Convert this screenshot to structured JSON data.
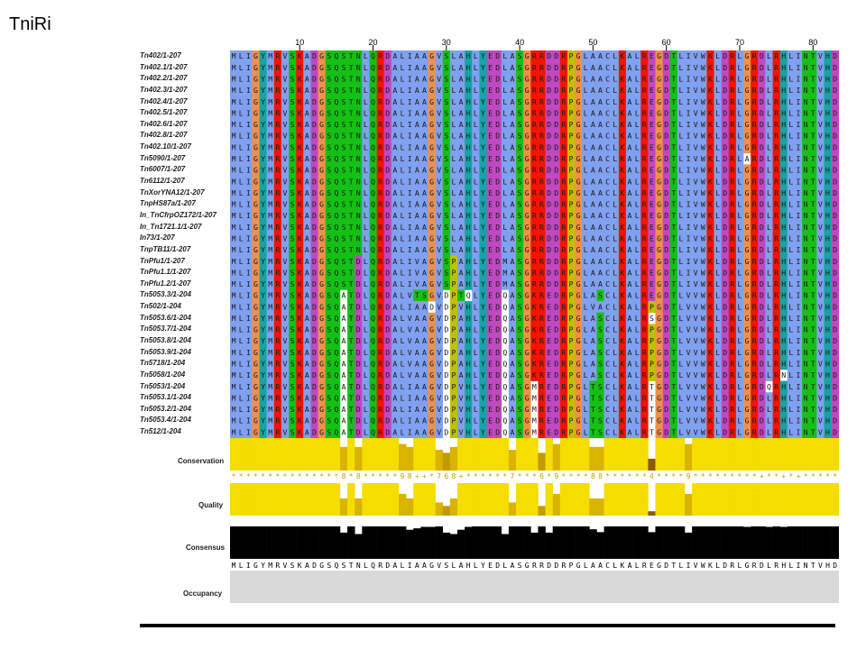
{
  "title": "TniRi",
  "ruler": [
    {
      "col": 10,
      "label": "10"
    },
    {
      "col": 20,
      "label": "20"
    },
    {
      "col": 30,
      "label": "30"
    },
    {
      "col": 40,
      "label": "40"
    },
    {
      "col": 50,
      "label": "50"
    },
    {
      "col": 60,
      "label": "60"
    },
    {
      "col": 70,
      "label": "70"
    },
    {
      "col": 80,
      "label": "80"
    }
  ],
  "sequences": [
    {
      "name": "Tn402/1-207",
      "seq": "MLIGYMRVSKADGSQSTNLQRDALIAAGVSLAHLYEDLASGRRDDRPGLAACLKALREGDTLIVWKLDRLGRDLRHLINTVHD"
    },
    {
      "name": "Tn402.1/1-207",
      "seq": "MLIGYMRVSKADGSQSTNLQRDALIAAGVSLAHLYEDLASGRRDDRPGLAACLKALREGDTLIVWKLDRLGRDLRHLINTVHD"
    },
    {
      "name": "Tn402.2/1-207",
      "seq": "MLIGYMRVSKADGSQSTNLQRDALIAAGVSLAHLYEDLASGRRDDRPGLAACLKALREGDTLIVWKLDRLGRDLRHLINTVHD"
    },
    {
      "name": "Tn402.3/1-207",
      "seq": "MLIGYMRVSKADGSQSTNLQRDALIAAGVSLAHLYEDLASGRRDDRPGLAACLKALREGDTLIVWKLDRLGRDLRHLINTVHD"
    },
    {
      "name": "Tn402.4/1-207",
      "seq": "MLIGYMRVSKADGSQSTNLQRDALIAAGVSLAHLYEDLASGRRDDRPGLAACLKALREGDTLIVWKLDRLGRDLRHLINTVHD"
    },
    {
      "name": "Tn402.5/1-207",
      "seq": "MLIGYMRVSKADGSQSTNLQRDALIAAGVSLAHLYEDLASGRRDDRPGLAACLKALREGDTLIVWKLDRLGRDLRHLINTVHD"
    },
    {
      "name": "Tn402.6/1-207",
      "seq": "MLIGYMRVSKADGSQSTNLQRDALIAAGVSLAHLYEDLASGRRDDRPGLAACLKALREGDTLIVWKLDRLGRDLRHLINTVHD"
    },
    {
      "name": "Tn402.8/1-207",
      "seq": "MLIGYMRVSKADGSQSTNLQRDALIAAGVSLAHLYEDLASGRRDDRPGLAACLKALREGDTLIVWKLDRLGRDLRHLINTVHD"
    },
    {
      "name": "Tn402.10/1-207",
      "seq": "MLIGYMRVSKADGSQSTNLQRDALIAAGVSLAHLYEDLASGRRDDRPGLAACLKALREGDTLIVWKLDRLGRDLRHLINTVHD"
    },
    {
      "name": "Tn5090/1-207",
      "seq": "MLIGYMRVSKADGSQSTNLQRDALIAAGVSLAHLYEDLASGRRDDRPGLAACLKALREGDTLIVWKLDRLARDLRHLINTVHD"
    },
    {
      "name": "Tn6007/1-207",
      "seq": "MLIGYMRVSKADGSQSTNLQRDALIAAGVSLAHLYEDLASGRRDDRPGLAACLKALREGDTLIVWKLDRLGRDLRHLINTVHD"
    },
    {
      "name": "Tn6112/1-207",
      "seq": "MLIGYMRVSKADGSQSTNLQRDALIAAGVSLAHLYEDLASGRRDDRPGLAACLKALREGDTLIVWKLDRLGRDLRHLINTVHD"
    },
    {
      "name": "TnXorYNA12/1-207",
      "seq": "MLIGYMRVSKADGSQSTNLQRDALIAAGVSLAHLYEDLASGRRDDRPGLAACLKALREGDTLIVWKLDRLGRDLRHLINTVHD"
    },
    {
      "name": "TnpHS87a/1-207",
      "seq": "MLIGYMRVSKADGSQSTNLQRDALIAAGVSLAHLYEDLASGRRDDRPGLAACLKALREGDTLIVWKLDRLGRDLRHLINTVHD"
    },
    {
      "name": "In_TnCfrpOZ172/1-207",
      "seq": "MLIGYMRVSKADGSQSTNLQRDALIAAGVSLAHLYEDLASGRRDDRPGLAACLKALREGDTLIVWKLDRLGRDLRHLINTVHD"
    },
    {
      "name": "In_Tn1721.1/1-207",
      "seq": "MLIGYMRVSKADGSQSTNLQRDALIAAGVSLAHLYEDLASGRRDDRPGLAACLKALREGDTLIVWKLDRLGRDLRHLINTVHD"
    },
    {
      "name": "In73/1-207",
      "seq": "MLIGYMRVSKADGSQSTNLQRDALIAAGVSLAHLYEDLASGRRDDRPGLAACLKALREGDTLIVWKLDRLGRDLRHLINTVHD"
    },
    {
      "name": "TnpTB11/1-207",
      "seq": "MLIGYMRVSKADGSQSTNLQRDALIAAGVSLAHLYEDLASGRRDDRPGLAACLKALREGDTLIVWKLDRLGRDLRHLINTVHD"
    },
    {
      "name": "TnPfu1/1-207",
      "seq": "MLIGYMRVSKADGSQSTDLQRDALIVAGVSPAHLYEDMASGRRDDRPGLAACLKALREGDTLIVWKLDRLGRDLRHLINTVHD"
    },
    {
      "name": "TnPfu1.1/1-207",
      "seq": "MLIGYMRVSKADGSQSTDLQRDALIVAGVSPAHLYEDMASGRRDDRPGLAACLKALREGDTLIVWKLDRLGRDLRHLINTVHD"
    },
    {
      "name": "TnPfu1.2/1-207",
      "seq": "MLIGYMRVSKADGSQSTDLQRDALIVAGVSPAHLYEDMASGRRDDRPGLAACLKALREGDTLIVWKLDRLGRDLRHLINTVHD"
    },
    {
      "name": "Tn5053.3/1-204",
      "seq": "MLIGYMRVSKADGSQATDLQRDALVTSGVDPTQLYEDQASGKREDRPGLASCLKALREGDTLVVWKLDRLGRDLRHLINTVHD"
    },
    {
      "name": "Tn502/1-204",
      "seq": "MLIGYMRVSKADGSQATDLQRDALIAADVDPVHLYEDQASGKREDRPGLVACLKALRPGDTLVVWKLDRLGRDLRHLINTVHD"
    },
    {
      "name": "Tn5053.6/1-204",
      "seq": "MLIGYMRVSKADGSQATDLQRDALVAAGVDPAHLYEDQASGKREDRPGLASCLKALRSGDTLVVWKLDRLGRDLRHLINTVHD"
    },
    {
      "name": "Tn5053.7/1-204",
      "seq": "MLIGYMRVSKADGSQATDLQRDALVAAGVDPAHLYEDQASGKREDRPGLASCLKALRPGDTLVVWKLDRLGRDLRHLINTVHD"
    },
    {
      "name": "Tn5053.8/1-204",
      "seq": "MLIGYMRVSKADGSQATDLQRDALVAAGVDPAHLYEDQASGKREDRPGLASCLKALRPGDTLVVWKLDRLGRDLRHLINTVHD"
    },
    {
      "name": "Tn5053.9/1-204",
      "seq": "MLIGYMRVSKADGSQATDLQRDALVAAGVDPAHLYEDQASGKREDRPGLASCLKALRPGDTLVVWKLDRLGRDLRHLINTVHD"
    },
    {
      "name": "Tn5718/1-204",
      "seq": "MLIGYMRVSKADGSQATDLQRDALVAAGVDPAHLYEDQASGKREDRPGLASCLKALRPGDTLVVWKLDRLGRDLRHLINTVHD"
    },
    {
      "name": "Tn5058/1-204",
      "seq": "MLIGYMRVSKADGSQATDLQRDALVAAGVDPAHLYEDQASGKREDRPGLASCLKALRPGDTLVVWKLDRLGRDLRNLINTVHD"
    },
    {
      "name": "Tn5053/1-204",
      "seq": "MLIGYMRVSKADGSQATDLQRDALIAAGVDPVHLYEDQASGMREDRPGLTSCLKALRTGDTLVVWKLDRLGRDQRHLINTVHD"
    },
    {
      "name": "Tn5053.1/1-204",
      "seq": "MLIGYMRVSKADGSQATDLQRDALIAAGVDPVHLYEDQASGMREDRPGLTSCLKALRTGDTLVVWKLDRLGRDLRHLINTVHD"
    },
    {
      "name": "Tn5053.2/1-204",
      "seq": "MLIGYMRVSKADGSQATDLQRDALIAAGVDPVHLYEDQASGMREDRPGLTSCLKALRTGDTLVVWKLDRLGRDLRHLINTVHD"
    },
    {
      "name": "Tn5053.4/1-204",
      "seq": "MLIGYMRVSKADGSQATDLQRDALIAAGVDPVHLYEDQASGMREDRPGLTSCLKALRTGDTLVVWKLDRLGRDLRHLINTVHD"
    },
    {
      "name": "Tn512/1-204",
      "seq": "MLIGYMRVSKADGSQATDLQRDALIAAGVDPVHLYEDQASGMREDRPGLTSCLKALRTGDTLVVWKLDRLGRDLRHLINTVHD"
    }
  ],
  "annotations": {
    "conservation": {
      "label": "Conservation",
      "values": [
        "*",
        "*",
        "*",
        "*",
        "*",
        "*",
        "*",
        "*",
        "*",
        "*",
        "*",
        "*",
        "*",
        "*",
        "*",
        "8",
        "*",
        "8",
        "*",
        "*",
        "*",
        "*",
        "*",
        "9",
        "8",
        "+",
        "+",
        "*",
        "7",
        "6",
        "8",
        "+",
        "*",
        "*",
        "*",
        "*",
        "*",
        "*",
        "7",
        "*",
        "*",
        "*",
        "6",
        "*",
        "9",
        "*",
        "*",
        "*",
        "*",
        "8",
        "8",
        "*",
        "*",
        "*",
        "*",
        "*",
        "*",
        "4",
        "*",
        "*",
        "*",
        "*",
        "9",
        "*",
        "*",
        "*",
        "*",
        "*",
        "*",
        "*",
        "*",
        "*",
        "+",
        "*",
        "*",
        "+",
        "*",
        "+",
        "*",
        "*",
        "*",
        "*",
        "*"
      ]
    },
    "quality": {
      "label": "Quality"
    },
    "consensus": {
      "label": "Consensus",
      "text": "MLIGYMRVSKADGSQSTNLQRDALIAAGVSLAHLYEDLASGRRDDRPGLAACLKALREGDTLIVWKLDRLGRDLRHLINTVHD"
    },
    "occupancy": {
      "label": "Occupancy"
    }
  },
  "colors": {
    "hydrophobic": "#80a0f0",
    "positive": "#f01505",
    "negative": "#c048c0",
    "polar": "#15c015",
    "cysteine": "#f08080",
    "glycine": "#f09048",
    "proline": "#c0c000",
    "aromatic": "#15a4a4",
    "conservation_bar": "#f5dd00",
    "conservation_low": "#8c5a00",
    "consensus_bar": "#000000",
    "occupancy_bar": "#d9d9d9"
  }
}
